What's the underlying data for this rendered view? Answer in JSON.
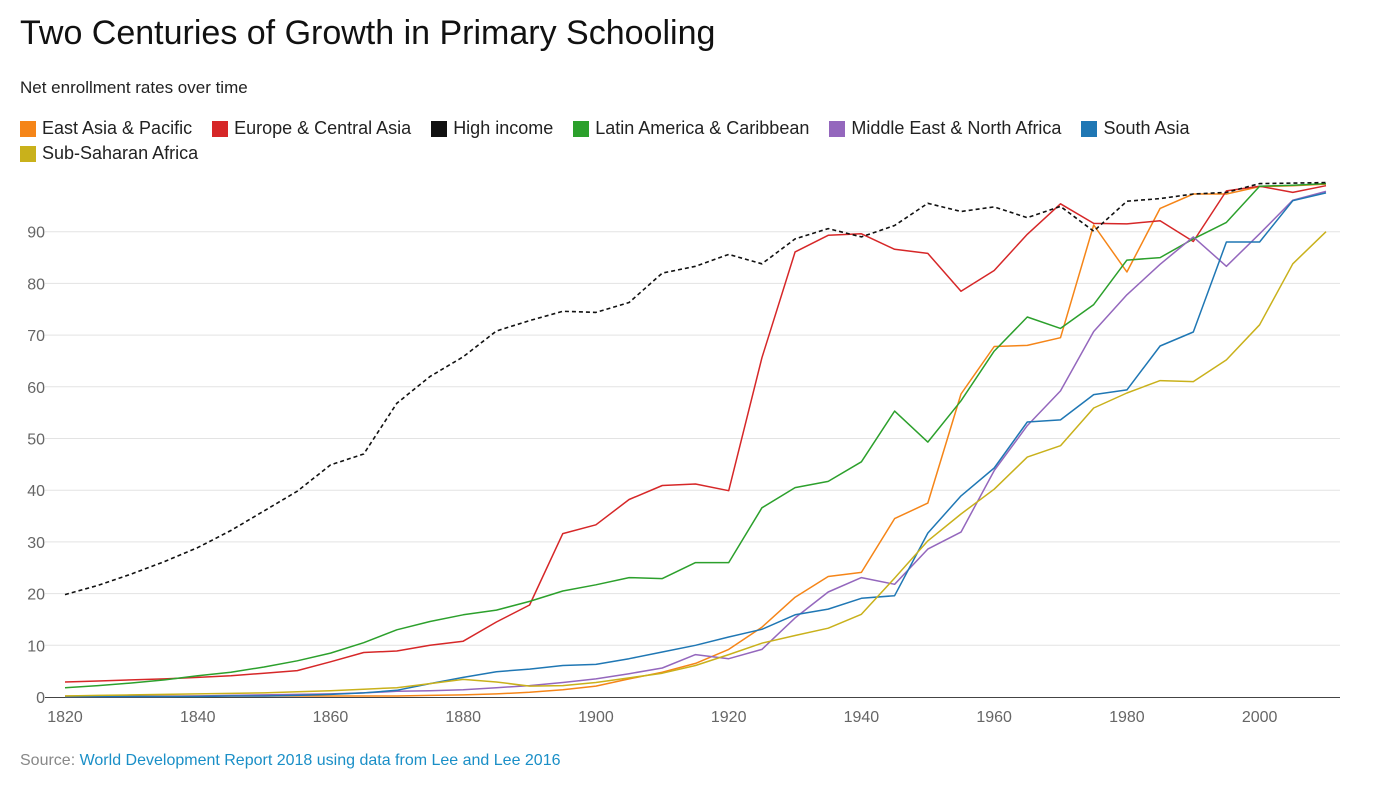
{
  "title": "Two Centuries of Growth in Primary Schooling",
  "subtitle": "Net enrollment rates over time",
  "source": {
    "prefix": "Source: ",
    "link_text": "World Development Report 2018 using data from Lee and Lee 2016"
  },
  "chart_data": {
    "type": "line",
    "title": "Two Centuries of Growth in Primary Schooling",
    "subtitle": "Net enrollment rates over time",
    "xlabel": "",
    "ylabel": "",
    "xlim": [
      1820,
      2010
    ],
    "ylim": [
      0,
      100
    ],
    "x_ticks": [
      1820,
      1840,
      1860,
      1880,
      1900,
      1920,
      1940,
      1960,
      1980,
      2000
    ],
    "y_ticks": [
      0,
      10,
      20,
      30,
      40,
      50,
      60,
      70,
      80,
      90
    ],
    "grid": true,
    "legend_position": "top",
    "x": [
      1820,
      1825,
      1830,
      1835,
      1840,
      1845,
      1850,
      1855,
      1860,
      1865,
      1870,
      1875,
      1880,
      1885,
      1890,
      1895,
      1900,
      1905,
      1910,
      1915,
      1920,
      1925,
      1930,
      1935,
      1940,
      1945,
      1950,
      1955,
      1960,
      1965,
      1970,
      1975,
      1980,
      1985,
      1990,
      1995,
      2000,
      2005,
      2010
    ],
    "series": [
      {
        "name": "East Asia & Pacific",
        "color": "#f58518",
        "dash": false,
        "values": [
          0.2,
          0.2,
          0.2,
          0.2,
          0.2,
          0.2,
          0.2,
          0.2,
          0.2,
          0.2,
          0.2,
          0.3,
          0.4,
          0.6,
          0.9,
          1.4,
          2.1,
          3.5,
          4.8,
          6.5,
          9.2,
          13.5,
          19.3,
          23.3,
          24.1,
          34.5,
          37.5,
          58.6,
          67.8,
          68.0,
          69.5,
          91.3,
          82.2,
          94.5,
          97.3,
          97.3,
          98.7,
          98.9,
          99.2
        ]
      },
      {
        "name": "Europe & Central Asia",
        "color": "#d62728",
        "dash": false,
        "values": [
          2.9,
          3.1,
          3.3,
          3.5,
          3.8,
          4.1,
          4.6,
          5.1,
          6.8,
          8.6,
          8.9,
          10.0,
          10.8,
          14.5,
          17.8,
          31.6,
          33.3,
          38.2,
          40.9,
          41.2,
          39.9,
          65.6,
          86.1,
          89.3,
          89.6,
          86.6,
          85.8,
          78.5,
          82.5,
          89.5,
          95.4,
          91.6,
          91.5,
          92.1,
          88.1,
          97.9,
          98.8,
          97.6,
          98.9
        ]
      },
      {
        "name": "High income",
        "color": "#111111",
        "dash": true,
        "values": [
          19.8,
          21.6,
          23.8,
          26.2,
          28.9,
          32.2,
          36.0,
          39.8,
          44.9,
          47.0,
          56.8,
          62.0,
          65.8,
          70.8,
          72.8,
          74.6,
          74.4,
          76.3,
          82.0,
          83.3,
          85.6,
          83.8,
          88.6,
          90.6,
          89.0,
          91.2,
          95.5,
          93.9,
          94.8,
          92.7,
          94.9,
          90.1,
          95.9,
          96.4,
          97.3,
          97.6,
          99.3,
          99.4,
          99.5
        ]
      },
      {
        "name": "Latin America & Caribbean",
        "color": "#2ca02c",
        "dash": false,
        "values": [
          1.8,
          2.2,
          2.7,
          3.3,
          4.1,
          4.8,
          5.8,
          7.0,
          8.5,
          10.5,
          13.0,
          14.6,
          15.9,
          16.8,
          18.5,
          20.5,
          21.7,
          23.1,
          22.9,
          26.0,
          26.0,
          36.6,
          40.5,
          41.7,
          45.5,
          55.3,
          49.3,
          57.3,
          66.9,
          73.5,
          71.3,
          75.9,
          84.5,
          85.0,
          88.6,
          91.8,
          98.8,
          99.0,
          99.3
        ]
      },
      {
        "name": "Middle East & North Africa",
        "color": "#9467bd",
        "dash": false,
        "values": [
          0.1,
          0.1,
          0.1,
          0.1,
          0.2,
          0.3,
          0.4,
          0.5,
          0.6,
          0.8,
          1.1,
          1.2,
          1.4,
          1.8,
          2.2,
          2.8,
          3.5,
          4.5,
          5.6,
          8.2,
          7.4,
          9.2,
          15.3,
          20.3,
          23.1,
          21.8,
          28.6,
          31.9,
          43.8,
          52.5,
          59.2,
          70.7,
          77.8,
          83.7,
          89.0,
          83.3,
          89.6,
          96.1,
          97.8
        ]
      },
      {
        "name": "South Asia",
        "color": "#1f77b4",
        "dash": false,
        "values": [
          0.1,
          0.1,
          0.1,
          0.1,
          0.1,
          0.2,
          0.2,
          0.3,
          0.5,
          0.8,
          1.3,
          2.6,
          3.8,
          4.9,
          5.4,
          6.1,
          6.3,
          7.4,
          8.7,
          10.0,
          11.6,
          13.1,
          15.9,
          17.0,
          19.1,
          19.6,
          31.7,
          38.9,
          44.3,
          53.2,
          53.6,
          58.5,
          59.4,
          67.9,
          70.6,
          88.0,
          88.0,
          96.0,
          97.5
        ]
      },
      {
        "name": "Sub-Saharan Africa",
        "color": "#c9b11b",
        "dash": false,
        "values": [
          0.2,
          0.3,
          0.4,
          0.5,
          0.6,
          0.7,
          0.8,
          1.0,
          1.2,
          1.5,
          1.8,
          2.6,
          3.4,
          2.9,
          2.1,
          2.2,
          2.8,
          3.7,
          4.6,
          6.1,
          8.2,
          10.4,
          11.9,
          13.3,
          16.0,
          23.0,
          30.2,
          35.4,
          40.2,
          46.4,
          48.6,
          55.9,
          58.8,
          61.2,
          61.0,
          65.2,
          72.0,
          83.8,
          90.0
        ]
      }
    ]
  }
}
